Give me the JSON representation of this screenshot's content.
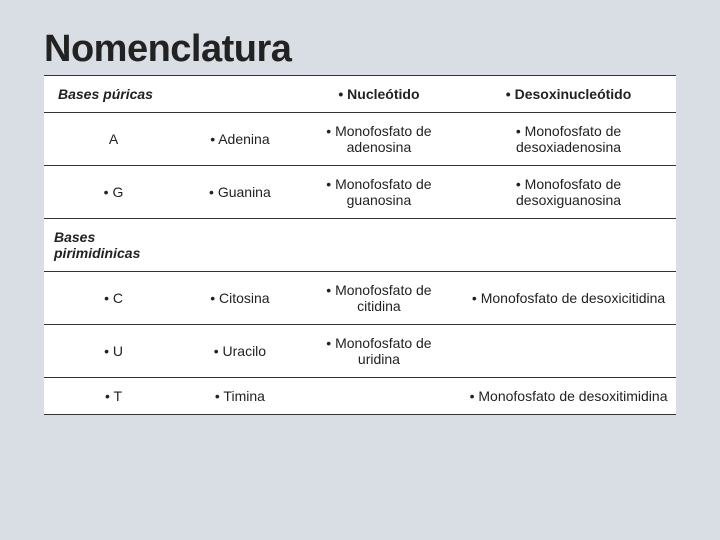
{
  "title": "Nomenclatura",
  "headers": {
    "col0": "Bases púricas",
    "col1": "",
    "col2": "• Nucleótido",
    "col3": "• Desoxinucleótido"
  },
  "section2_label": "Bases pirimidinicas",
  "rows": [
    {
      "c0": "A",
      "c1": "• Adenina",
      "c2": "• Monofosfato de adenosina",
      "c3": "• Monofosfato de desoxiadenosina"
    },
    {
      "c0": "• G",
      "c1": "• Guanina",
      "c2": "• Monofosfato de guanosina",
      "c3": "• Monofosfato de desoxiguanosina"
    }
  ],
  "rows2": [
    {
      "c0": "• C",
      "c1": "• Citosina",
      "c2": "• Monofosfato de citidina",
      "c3": "• Monofosfato de desoxicitidina"
    },
    {
      "c0": "• U",
      "c1": "• Uracilo",
      "c2": "• Monofosfato de uridina",
      "c3": ""
    },
    {
      "c0": "• T",
      "c1": "• Timina",
      "c2": "",
      "c3": "• Monofosfato de desoxitimidina"
    }
  ],
  "style": {
    "background": "#d9dde4",
    "table_bg": "#ffffff",
    "border_color": "#333333",
    "title_color": "#222222",
    "text_color": "#222222",
    "title_fontsize": 38,
    "cell_fontsize": 14
  }
}
